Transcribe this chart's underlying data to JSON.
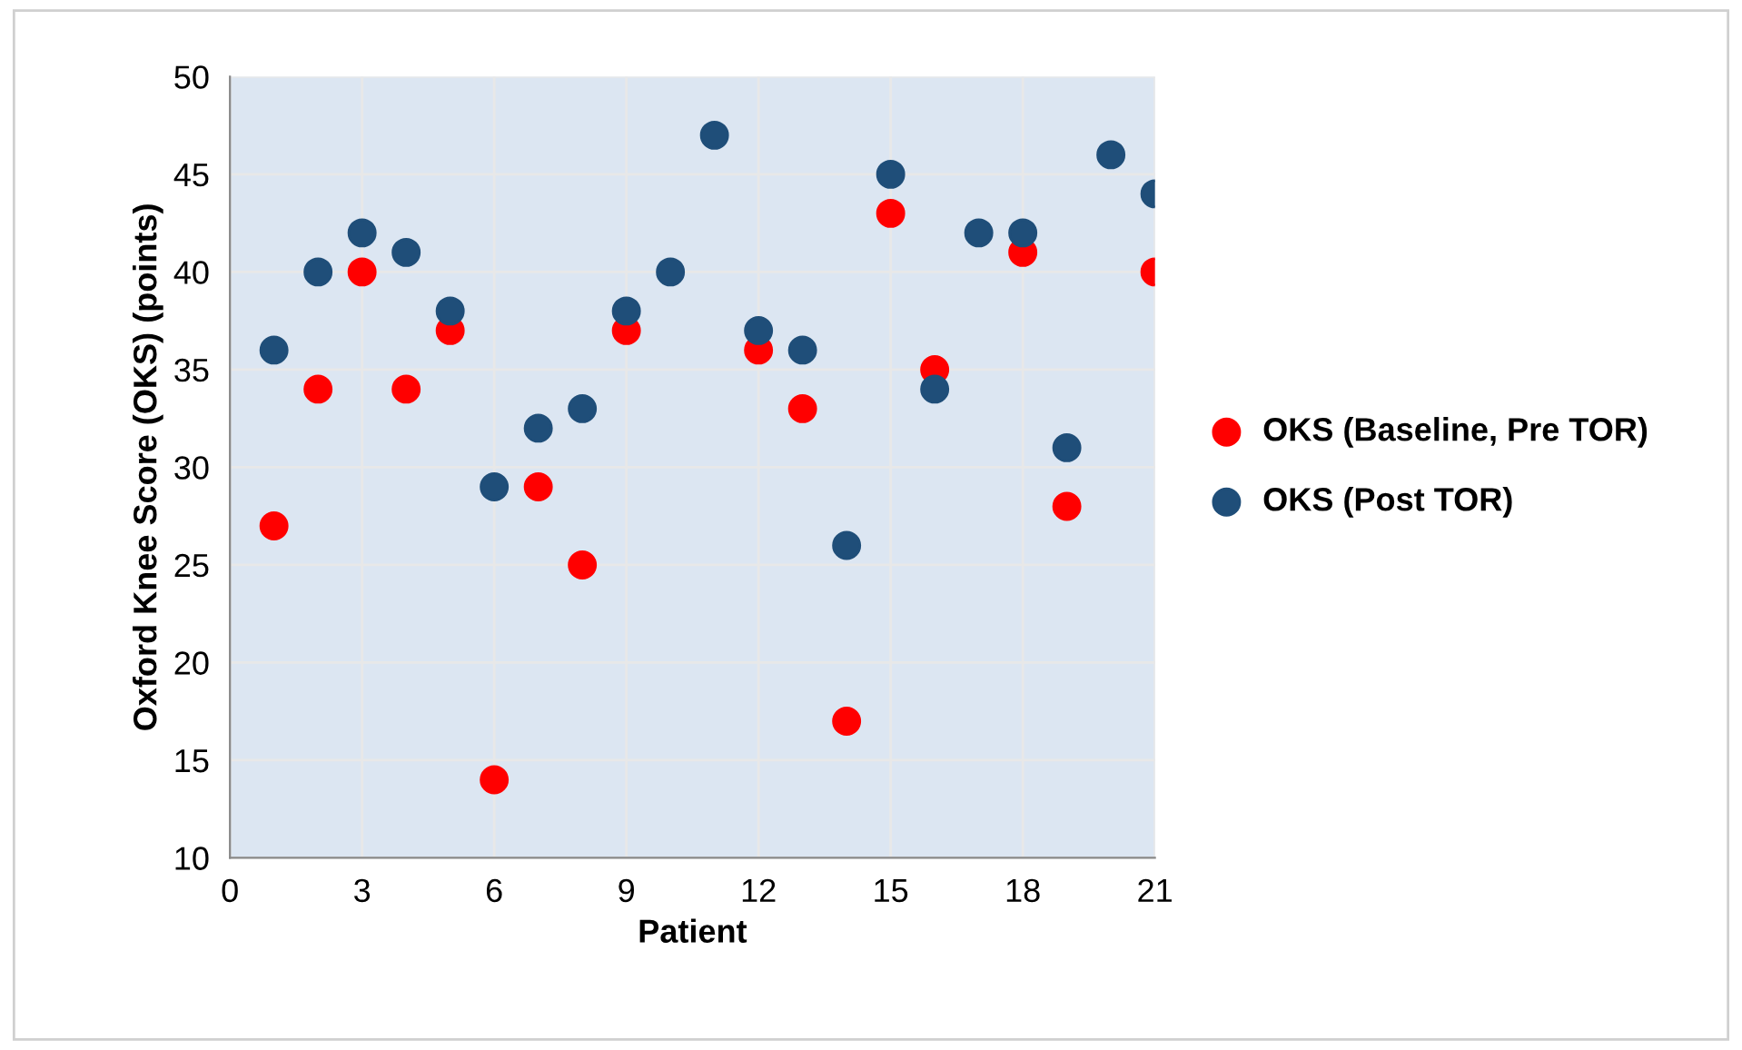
{
  "chart_data": {
    "type": "scatter",
    "xlabel": "Patient",
    "ylabel": "Oxford Knee Score (OKS) (points)",
    "x": [
      1,
      2,
      3,
      4,
      5,
      6,
      7,
      8,
      9,
      10,
      11,
      12,
      13,
      14,
      15,
      16,
      17,
      18,
      19,
      20,
      21
    ],
    "series": [
      {
        "name": "OKS (Baseline, Pre TOR)",
        "color": "#ff0000",
        "values": [
          27,
          34,
          40,
          34,
          37,
          14,
          29,
          25,
          37,
          null,
          null,
          36,
          33,
          17,
          43,
          35,
          null,
          41,
          28,
          null,
          40
        ]
      },
      {
        "name": "OKS (Post TOR)",
        "color": "#1f4e79",
        "values": [
          36,
          40,
          42,
          41,
          38,
          29,
          32,
          33,
          38,
          40,
          47,
          37,
          36,
          26,
          45,
          34,
          42,
          42,
          31,
          46,
          44
        ]
      }
    ],
    "xlim": [
      0,
      21
    ],
    "xticks": [
      0,
      3,
      6,
      9,
      12,
      15,
      18,
      21
    ],
    "ylim": [
      10,
      50
    ],
    "yticks": [
      10,
      15,
      20,
      25,
      30,
      35,
      40,
      45,
      50
    ],
    "grid": true,
    "legend": "right",
    "marker": "circle"
  }
}
